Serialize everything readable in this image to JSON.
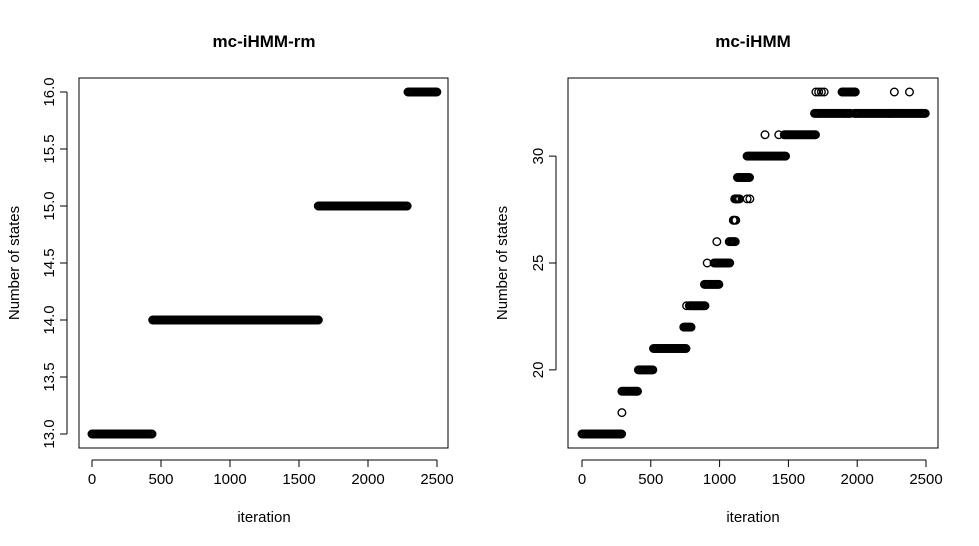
{
  "chart_data": [
    {
      "type": "scatter",
      "title": "mc-iHMM-rm",
      "xlabel": "iteration",
      "ylabel": "Number of states",
      "xlim": [
        0,
        2500
      ],
      "ylim": [
        13.0,
        16.0
      ],
      "x_ticks": [
        0,
        500,
        1000,
        1500,
        2000,
        2500
      ],
      "y_ticks": [
        13.0,
        13.5,
        14.0,
        14.5,
        15.0,
        15.5,
        16.0
      ],
      "x_tick_labels": [
        "0",
        "500",
        "1000",
        "1500",
        "2000",
        "2500"
      ],
      "y_tick_labels": [
        "13.0",
        "13.5",
        "14.0",
        "14.5",
        "15.0",
        "15.5",
        "16.0"
      ],
      "marker": "open-circle",
      "segments": [
        {
          "x_start": 0,
          "x_end": 440,
          "y": 13
        },
        {
          "x_start": 440,
          "x_end": 1640,
          "y": 14
        },
        {
          "x_start": 1640,
          "x_end": 2290,
          "y": 15
        },
        {
          "x_start": 2290,
          "x_end": 2500,
          "y": 16
        }
      ],
      "isolated_points": []
    },
    {
      "type": "scatter",
      "title": "mc-iHMM",
      "xlabel": "iteration",
      "ylabel": "Number of states",
      "xlim": [
        0,
        2500
      ],
      "ylim": [
        17,
        33
      ],
      "x_ticks": [
        0,
        500,
        1000,
        1500,
        2000,
        2500
      ],
      "y_ticks": [
        20,
        25,
        30
      ],
      "x_tick_labels": [
        "0",
        "500",
        "1000",
        "1500",
        "2000",
        "2500"
      ],
      "y_tick_labels": [
        "20",
        "25",
        "30"
      ],
      "marker": "open-circle",
      "segments": [
        {
          "x_start": 0,
          "x_end": 290,
          "y": 17
        },
        {
          "x_start": 290,
          "x_end": 410,
          "y": 19
        },
        {
          "x_start": 410,
          "x_end": 520,
          "y": 20
        },
        {
          "x_start": 520,
          "x_end": 760,
          "y": 21
        },
        {
          "x_start": 740,
          "x_end": 800,
          "y": 22
        },
        {
          "x_start": 780,
          "x_end": 900,
          "y": 23
        },
        {
          "x_start": 890,
          "x_end": 1000,
          "y": 24
        },
        {
          "x_start": 960,
          "x_end": 1080,
          "y": 25
        },
        {
          "x_start": 1070,
          "x_end": 1120,
          "y": 26
        },
        {
          "x_start": 1100,
          "x_end": 1120,
          "y": 27
        },
        {
          "x_start": 1110,
          "x_end": 1150,
          "y": 28
        },
        {
          "x_start": 1130,
          "x_end": 1220,
          "y": 29
        },
        {
          "x_start": 1200,
          "x_end": 1480,
          "y": 30
        },
        {
          "x_start": 1470,
          "x_end": 1700,
          "y": 31
        },
        {
          "x_start": 1690,
          "x_end": 1960,
          "y": 32
        },
        {
          "x_start": 1890,
          "x_end": 1990,
          "y": 33
        },
        {
          "x_start": 1980,
          "x_end": 2500,
          "y": 32
        }
      ],
      "isolated_points": [
        {
          "x": 290,
          "y": 18
        },
        {
          "x": 760,
          "y": 23
        },
        {
          "x": 910,
          "y": 25
        },
        {
          "x": 980,
          "y": 26
        },
        {
          "x": 1100,
          "y": 27
        },
        {
          "x": 1120,
          "y": 28
        },
        {
          "x": 1200,
          "y": 28
        },
        {
          "x": 1220,
          "y": 28
        },
        {
          "x": 1330,
          "y": 31
        },
        {
          "x": 1430,
          "y": 31
        },
        {
          "x": 1700,
          "y": 33
        },
        {
          "x": 1720,
          "y": 33
        },
        {
          "x": 1740,
          "y": 33
        },
        {
          "x": 1760,
          "y": 33
        },
        {
          "x": 2270,
          "y": 33
        },
        {
          "x": 2380,
          "y": 33
        }
      ]
    }
  ]
}
